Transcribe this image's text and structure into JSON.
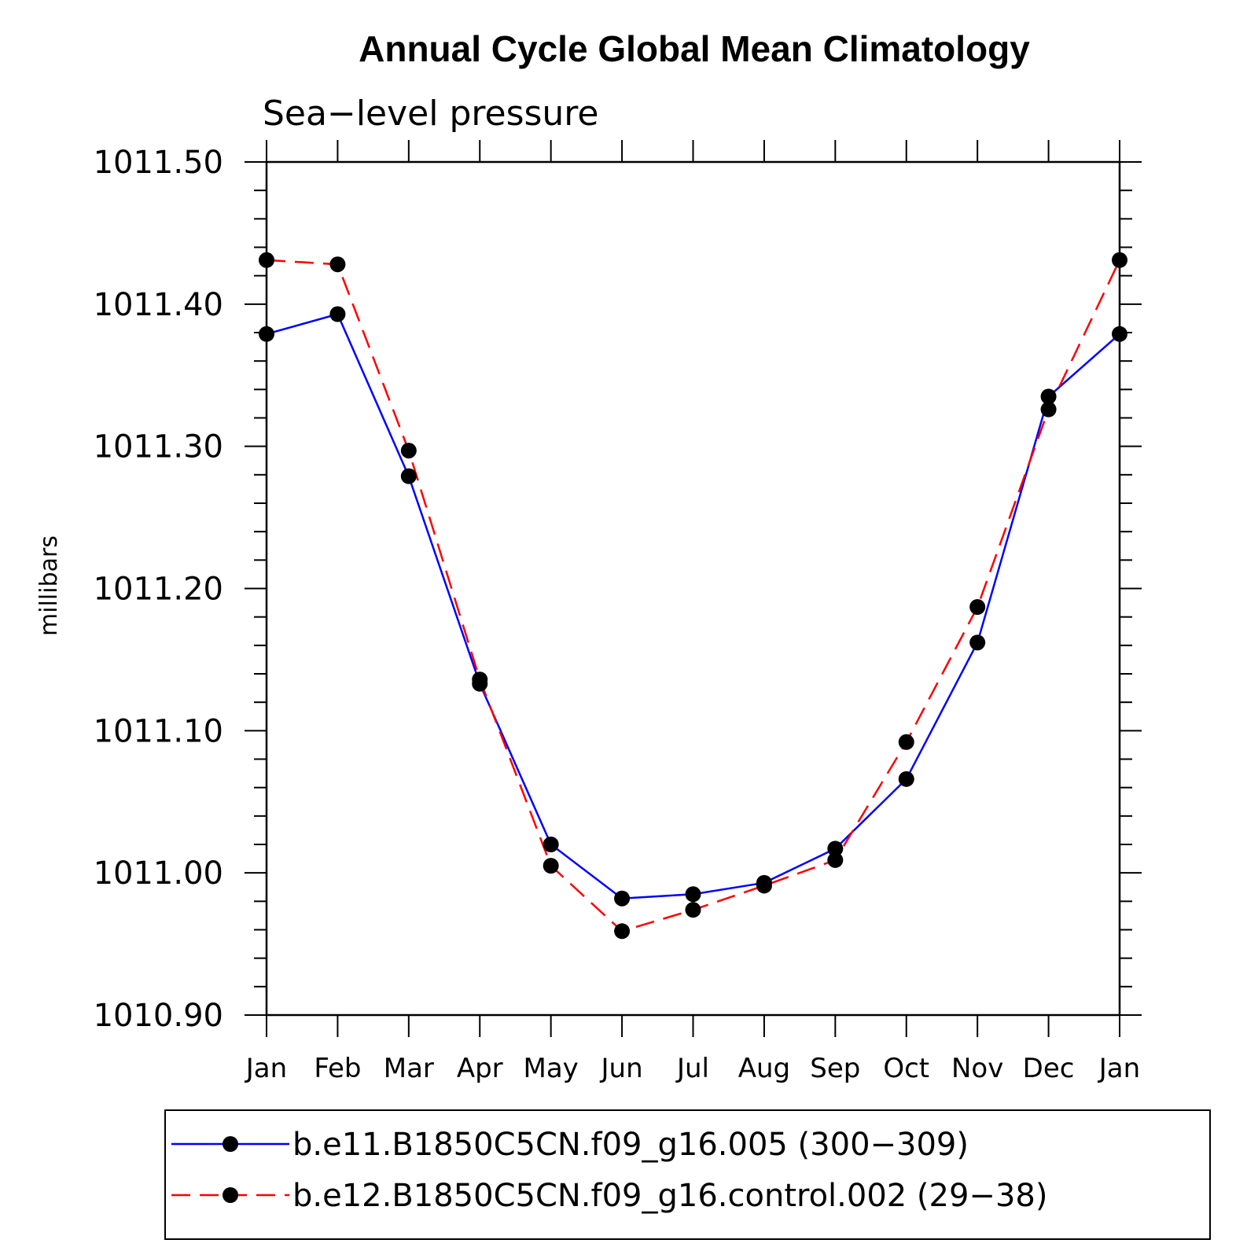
{
  "chart_data": {
    "type": "line",
    "title": "Annual Cycle Global Mean Climatology",
    "subtitle": "Sea−level pressure",
    "ylabel": "millibars",
    "ylim": [
      1010.9,
      1011.5
    ],
    "y_ticks": [
      "1010.90",
      "1011.00",
      "1011.10",
      "1011.20",
      "1011.30",
      "1011.40",
      "1011.50"
    ],
    "categories": [
      "Jan",
      "Feb",
      "Mar",
      "Apr",
      "May",
      "Jun",
      "Jul",
      "Aug",
      "Sep",
      "Oct",
      "Nov",
      "Dec",
      "Jan"
    ],
    "legend_position": "bottom",
    "grid": false,
    "series": [
      {
        "name": "b.e11.B1850C5CN.f09_g16.005 (300−309)",
        "color": "#0000ff",
        "line_style": "solid",
        "marker": "filled-circle",
        "values": [
          1011.379,
          1011.393,
          1011.279,
          1011.133,
          1011.02,
          1010.982,
          1010.985,
          1010.993,
          1011.017,
          1011.066,
          1011.162,
          1011.335,
          1011.379
        ]
      },
      {
        "name": "b.e12.B1850C5CN.f09_g16.control.002 (29−38)",
        "color": "#ff0000",
        "line_style": "dashed",
        "marker": "filled-circle",
        "values": [
          1011.431,
          1011.428,
          1011.297,
          1011.136,
          1011.005,
          1010.959,
          1010.974,
          1010.991,
          1011.009,
          1011.092,
          1011.187,
          1011.326,
          1011.431
        ]
      }
    ]
  }
}
